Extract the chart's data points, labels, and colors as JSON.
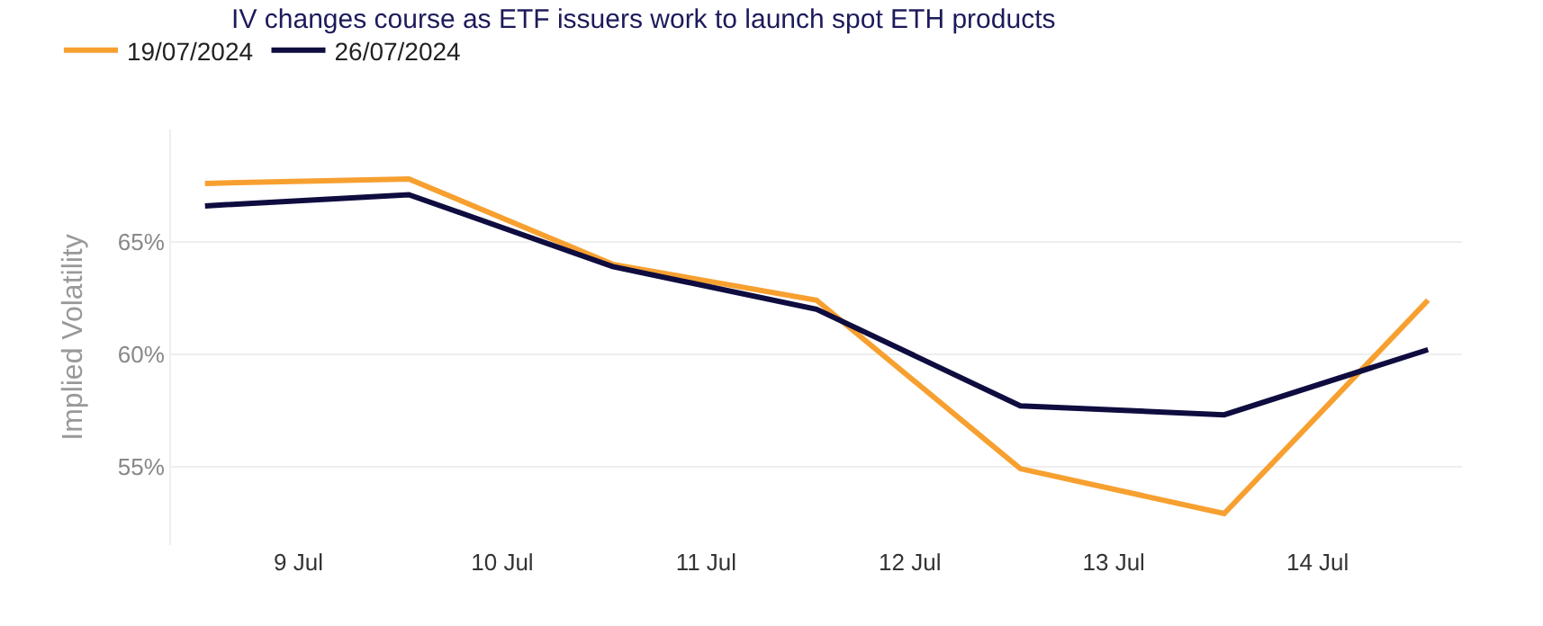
{
  "chart_data": {
    "type": "line",
    "title": "IV changes course as ETF issuers work to launch spot ETH products",
    "ylabel": "Implied Volatility",
    "x": [
      "2024-07-08T13:00",
      "2024-07-09T13:00",
      "2024-07-10T13:00",
      "2024-07-11T13:00",
      "2024-07-12T13:00",
      "2024-07-13T13:00",
      "2024-07-14T13:00"
    ],
    "series": [
      {
        "name": "19/07/2024",
        "color": "#f7a030",
        "values": [
          67.6,
          67.8,
          64.0,
          62.4,
          54.9,
          52.9,
          62.4
        ]
      },
      {
        "name": "26/07/2024",
        "color": "#0f0c3f",
        "values": [
          66.6,
          67.1,
          63.9,
          62.0,
          57.7,
          57.3,
          60.2
        ]
      }
    ],
    "xlim": [
      "2024-07-08T09:00",
      "2024-07-14T17:00"
    ],
    "xticks": [
      {
        "value": "2024-07-09",
        "label": "9 Jul"
      },
      {
        "value": "2024-07-10",
        "label": "10 Jul"
      },
      {
        "value": "2024-07-11",
        "label": "11 Jul"
      },
      {
        "value": "2024-07-12",
        "label": "12 Jul"
      },
      {
        "value": "2024-07-13",
        "label": "13 Jul"
      },
      {
        "value": "2024-07-14",
        "label": "14 Jul"
      }
    ],
    "ylim": [
      51.5,
      70
    ],
    "yticks": [
      {
        "value": 55,
        "label": "55%"
      },
      {
        "value": 60,
        "label": "60%"
      },
      {
        "value": 65,
        "label": "65%"
      }
    ],
    "grid": "y",
    "legend": "top left",
    "marker": "none",
    "line_style": "solid"
  }
}
